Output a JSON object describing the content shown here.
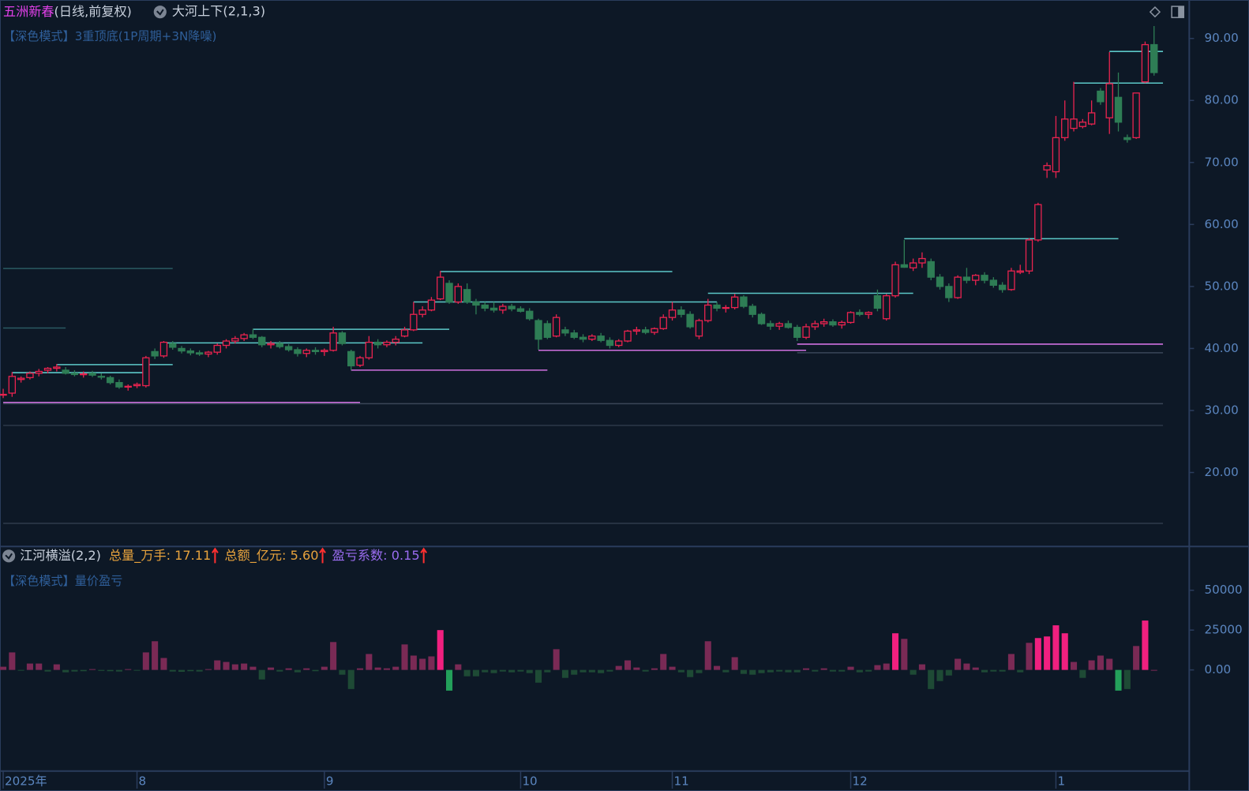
{
  "chart_data": [
    {
      "type": "candlestick",
      "title": "五洲新春",
      "subtitle": "(日线,前复权)",
      "indicator": "大河上下(2,1,3)",
      "note": "【深色模式】3重顶底(1P周期+3N降噪)",
      "open": [
        32.5,
        32.8,
        35,
        35.3,
        36,
        36.5,
        36.8,
        36.5,
        36,
        35.8,
        36,
        35.5,
        35.3,
        34.5,
        33.8,
        34,
        34,
        39.5,
        38.8,
        40.8,
        40,
        39.6,
        39.3,
        39.1,
        39.4,
        40.5,
        41.2,
        41.6,
        42.2,
        41.8,
        40.6,
        40.8,
        40.3,
        39.8,
        39.2,
        39.7,
        39.5,
        39.7,
        42.5,
        39.5,
        37.3,
        38.5,
        41,
        40.6,
        41,
        42,
        43,
        45.5,
        46.2,
        48,
        50.5,
        47.5,
        49.5,
        47.5,
        47,
        46.5,
        46.2,
        46.8,
        46.4,
        46,
        44.5,
        44,
        42,
        43,
        42.5,
        41.8,
        41.5,
        42,
        41.3,
        40.5,
        41.2,
        42.8,
        43,
        42.6,
        43.2,
        45,
        46.2,
        45.5,
        42,
        44.5,
        47,
        46.5,
        46.6,
        48.3,
        46.8,
        45.5,
        44,
        43.6,
        44,
        43.4,
        41.8,
        43.5,
        44,
        44.3,
        43.8,
        44.2,
        45.8,
        45.5,
        48.5,
        44.8,
        48.5,
        53.5,
        53,
        53.8,
        54,
        51.5,
        50,
        48.2,
        51.5,
        51,
        51.8,
        51,
        50.2,
        49.5,
        52.3,
        52.5,
        57.5,
        68.8,
        68.5,
        74,
        75.5,
        75.8,
        76.2,
        81.5,
        77.2,
        80.5,
        74,
        74,
        83,
        89
      ],
      "high": [
        33.5,
        36.2,
        35.5,
        36.3,
        36.7,
        37,
        37.5,
        37,
        36.5,
        36.3,
        36.4,
        36,
        35.6,
        35,
        34.2,
        34.5,
        38.8,
        40,
        41.2,
        41.2,
        40.4,
        40,
        39.7,
        39.6,
        40.8,
        41.5,
        42,
        42.5,
        43.2,
        42,
        41.2,
        41.2,
        40.7,
        40.2,
        40,
        40.2,
        40,
        43.5,
        42.8,
        39.8,
        38.8,
        42,
        41.5,
        41.3,
        42,
        43.5,
        47.5,
        46.8,
        48.3,
        52.5,
        51,
        50.5,
        50.5,
        48,
        47.5,
        47.5,
        47.2,
        47.2,
        46.8,
        46.5,
        44.8,
        44.5,
        45.5,
        43.5,
        43,
        42.3,
        42.3,
        42.5,
        41.8,
        41.5,
        43,
        43.5,
        43.5,
        43.4,
        45.5,
        47.5,
        46.8,
        46,
        44.8,
        48,
        47.5,
        47,
        48.8,
        48.6,
        47.2,
        45.8,
        44.5,
        44.3,
        44.5,
        43.8,
        44,
        44.5,
        44.8,
        44.7,
        44.5,
        46,
        46.3,
        46,
        49.5,
        48.8,
        54,
        57.5,
        54.5,
        55.5,
        54.5,
        52,
        50.5,
        51.8,
        53,
        52,
        52.3,
        51.5,
        50.7,
        53,
        53.5,
        57.8,
        63.5,
        70,
        77.5,
        80,
        83,
        77,
        80,
        82,
        87.8,
        84.5,
        74.5,
        81.2,
        89.5,
        92
      ],
      "low": [
        32,
        32.2,
        34.5,
        35,
        35.5,
        36,
        36.3,
        35.8,
        35.5,
        35.3,
        35.4,
        35,
        34.2,
        33.5,
        33.2,
        33.6,
        33.7,
        38.3,
        38.5,
        39.8,
        39.2,
        38.9,
        38.8,
        38.6,
        39,
        40,
        40.8,
        41.2,
        41.5,
        40.2,
        40,
        40,
        39.5,
        38.7,
        38.6,
        39,
        38.8,
        39.5,
        40.5,
        36.5,
        37,
        38.2,
        40,
        40.2,
        40.5,
        41.8,
        42.8,
        45,
        46,
        47.8,
        47.2,
        47.2,
        47.2,
        45.5,
        46,
        45.8,
        45.6,
        46,
        45.8,
        44.5,
        39.8,
        41.5,
        41.8,
        42,
        41.5,
        41,
        41.2,
        41,
        40,
        40.2,
        41,
        42.2,
        42.3,
        42.2,
        43,
        44.5,
        45,
        43.2,
        41.5,
        44.2,
        46,
        45.8,
        46.3,
        46.5,
        45,
        43.8,
        43,
        43,
        43.2,
        41.2,
        41.5,
        43,
        43.5,
        43.5,
        43.2,
        44,
        45.2,
        44.8,
        46,
        44.5,
        48.2,
        53,
        52.5,
        53,
        51,
        49.5,
        47.5,
        48,
        50.5,
        50.2,
        50.5,
        49.8,
        49,
        49.3,
        52,
        52,
        57.2,
        67.5,
        67.5,
        73.5,
        75,
        75.5,
        76,
        79.3,
        74.6,
        75,
        73.2,
        73.8,
        82.8,
        84
      ],
      "close": [
        32.6,
        35.5,
        35.2,
        36,
        36.3,
        36.8,
        37,
        36,
        35.8,
        35.9,
        35.7,
        35.4,
        34.5,
        33.8,
        33.9,
        34.2,
        38.5,
        38.8,
        41,
        40.2,
        39.6,
        39.3,
        39.1,
        39.4,
        40.5,
        41.2,
        41.6,
        42.2,
        41.8,
        40.6,
        40.8,
        40.3,
        39.8,
        39.2,
        39.7,
        39.5,
        39.7,
        42.5,
        40.8,
        37.2,
        38.5,
        41,
        40.6,
        41,
        41.5,
        43,
        45.5,
        46.2,
        47.8,
        51.5,
        47.5,
        50,
        47.5,
        47,
        46.5,
        46.2,
        46.8,
        46.4,
        46,
        44.8,
        41.5,
        41.8,
        45,
        42.5,
        41.8,
        41.5,
        42,
        41.3,
        40.5,
        41.2,
        42.8,
        43,
        42.6,
        43.2,
        45,
        46.2,
        45.5,
        43.5,
        44.5,
        47,
        46.5,
        46.6,
        48.3,
        46.8,
        45.5,
        44,
        43.6,
        44,
        43.4,
        41.8,
        43.5,
        44,
        44.3,
        43.8,
        44.2,
        45.8,
        45.5,
        45.8,
        46.5,
        48.5,
        53.5,
        53.1,
        53.8,
        54.5,
        51.5,
        50,
        48.2,
        51.5,
        51,
        51.8,
        51,
        50.2,
        49.5,
        52.5,
        52.5,
        57.5,
        63.2,
        69.5,
        74,
        77,
        77,
        76.5,
        78,
        79.8,
        82.7,
        76.5,
        73.7,
        81.2,
        89,
        84.5
      ],
      "up_color": "#e8234f",
      "down_color": "#2e7d55",
      "ylim": [
        8.2,
        96.2
      ],
      "yticks": [
        {
          "value": 90,
          "label": "90.00"
        },
        {
          "value": 80,
          "label": "80.00"
        },
        {
          "value": 70,
          "label": "70.00"
        },
        {
          "value": 60,
          "label": "60.00"
        },
        {
          "value": 50,
          "label": "50.00"
        },
        {
          "value": 40,
          "label": "40.00"
        },
        {
          "value": 30,
          "label": "30.00"
        },
        {
          "value": 20,
          "label": "20.00"
        }
      ],
      "levels": [
        {
          "value": 52.9,
          "from": 0,
          "to": 19,
          "color": "#2a5a62"
        },
        {
          "value": 43.3,
          "from": 0,
          "to": 7,
          "color": "#2a5a62"
        },
        {
          "value": 37.4,
          "from": 6,
          "to": 19,
          "color": "#5cc8c8"
        },
        {
          "value": 36.1,
          "from": 1,
          "to": 16,
          "color": "#5cc8c8"
        },
        {
          "value": 40.9,
          "from": 18,
          "to": 47,
          "color": "#5cc8c8"
        },
        {
          "value": 43.1,
          "from": 28,
          "to": 50,
          "color": "#5cc8c8"
        },
        {
          "value": 52.4,
          "from": 49,
          "to": 75,
          "color": "#5cc8c8"
        },
        {
          "value": 47.5,
          "from": 46,
          "to": 80,
          "color": "#5cc8c8"
        },
        {
          "value": 48.9,
          "from": 79,
          "to": 102,
          "color": "#5cc8c8"
        },
        {
          "value": 57.7,
          "from": 101,
          "to": 125,
          "color": "#5cc8c8"
        },
        {
          "value": 82.8,
          "from": 120,
          "to": 130,
          "color": "#5cc8c8"
        },
        {
          "value": 87.9,
          "from": 124,
          "to": 130,
          "color": "#5cc8c8"
        },
        {
          "value": 31.3,
          "from": 0,
          "to": 40,
          "color": "#d070e0"
        },
        {
          "value": 36.5,
          "from": 39,
          "to": 61,
          "color": "#d070e0"
        },
        {
          "value": 39.7,
          "from": 60,
          "to": 90,
          "color": "#d070e0"
        },
        {
          "value": 40.7,
          "from": 89,
          "to": 130,
          "color": "#d070e0"
        },
        {
          "value": 31.1,
          "from": 0,
          "to": 130,
          "color": "#3a4658"
        },
        {
          "value": 27.6,
          "from": 0,
          "to": 130,
          "color": "#2c3848"
        },
        {
          "value": 11.8,
          "from": 0,
          "to": 130,
          "color": "#2c3848"
        },
        {
          "value": 39.3,
          "from": 89,
          "to": 130,
          "color": "#3a4658"
        }
      ]
    },
    {
      "type": "bar",
      "title": "江河横溢(2,2)",
      "note": "【深色模式】量价盈亏",
      "stats": [
        {
          "text": "总量_万手: 17.11",
          "color": "#e8a33d"
        },
        {
          "text": "总额_亿元: 5.60",
          "color": "#e8a33d"
        },
        {
          "text": "盈亏系数: 0.15",
          "color": "#9a6cf0"
        }
      ],
      "categories": [
        "2025年",
        null,
        null,
        null,
        null,
        null,
        null,
        null,
        null,
        null,
        null,
        null,
        null,
        null,
        null,
        "8",
        null,
        null,
        null,
        null,
        null,
        null,
        null,
        null,
        null,
        null,
        null,
        null,
        null,
        null,
        null,
        null,
        null,
        null,
        null,
        null,
        "9",
        null,
        null,
        null,
        null,
        null,
        null,
        null,
        null,
        null,
        null,
        null,
        null,
        null,
        null,
        null,
        null,
        null,
        null,
        null,
        null,
        null,
        "10",
        null,
        null,
        null,
        null,
        null,
        null,
        null,
        null,
        null,
        null,
        null,
        null,
        null,
        null,
        null,
        null,
        "11",
        null,
        null,
        null,
        null,
        null,
        null,
        null,
        null,
        null,
        null,
        null,
        null,
        null,
        null,
        null,
        null,
        null,
        null,
        null,
        "12",
        null,
        null,
        null,
        null,
        null,
        null,
        null,
        null,
        null,
        null,
        null,
        null,
        null,
        null,
        null,
        null,
        null,
        null,
        null,
        null,
        null,
        null,
        "1",
        null,
        null,
        null,
        null,
        null,
        null,
        null,
        null,
        null,
        null,
        null
      ],
      "values": [
        2000,
        11000,
        -500,
        4000,
        4000,
        -1000,
        3500,
        -1500,
        -1000,
        -800,
        500,
        -600,
        -800,
        -1000,
        500,
        -500,
        11000,
        18000,
        7500,
        -1000,
        -1200,
        -800,
        -1000,
        500,
        6000,
        5000,
        3500,
        4000,
        2000,
        -6000,
        1500,
        -1000,
        1000,
        -1500,
        1000,
        -800,
        2000,
        17500,
        -3000,
        -12000,
        1000,
        10000,
        1500,
        1000,
        2000,
        16000,
        9000,
        7000,
        8500,
        25000,
        -13000,
        3500,
        -4000,
        -4000,
        -1500,
        -2000,
        -1000,
        -1500,
        -1000,
        -2000,
        -8000,
        -1500,
        13000,
        -5000,
        -3000,
        -1500,
        -1500,
        -2000,
        -1000,
        2500,
        6000,
        1500,
        -1000,
        1000,
        10000,
        2000,
        -1500,
        -4500,
        -2000,
        18000,
        2500,
        -1500,
        8000,
        -2500,
        -3000,
        -2000,
        -1500,
        -1000,
        -1500,
        -1500,
        1000,
        -1000,
        1000,
        -1000,
        -1000,
        2000,
        -1500,
        -1000,
        3000,
        4000,
        23000,
        19500,
        -3000,
        3500,
        -12000,
        -7000,
        -3500,
        7000,
        4000,
        1500,
        -1500,
        -1000,
        -1000,
        10000,
        -1500,
        17000,
        20000,
        21000,
        28000,
        23000,
        5000,
        -5000,
        6000,
        9000,
        7000,
        -13000,
        -12000,
        15000,
        31000,
        0
      ],
      "colors": {
        "up": "#7a2a55",
        "up_strong": "#f0207f",
        "down": "#1e4a35",
        "down_strong": "#23a05a"
      },
      "ylim": [
        -63000,
        77000
      ],
      "yticks": [
        50000,
        25000,
        {
          "value": 0,
          "label": "0.00"
        }
      ]
    }
  ]
}
